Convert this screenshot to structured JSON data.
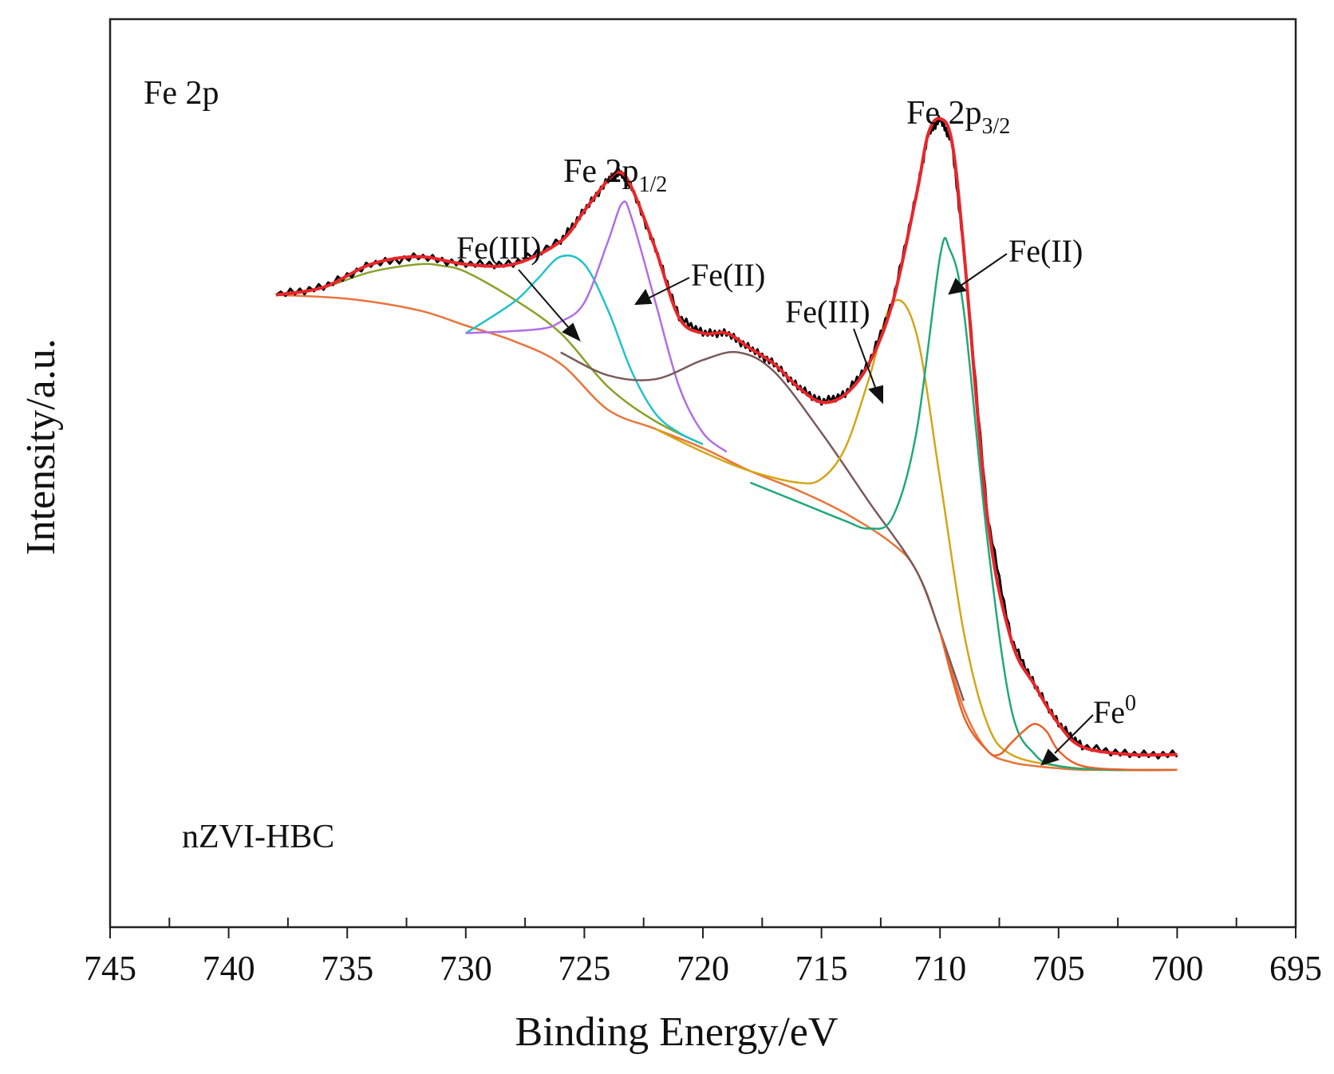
{
  "chart_data": {
    "type": "line",
    "xlabel": "Binding Energy/eV",
    "ylabel": "Intensity/a.u.",
    "x_reversed": true,
    "xlim": [
      745,
      695
    ],
    "ylim": [
      0,
      1
    ],
    "y_tick_labels": false,
    "grid": false,
    "x_ticks": [
      745,
      740,
      735,
      730,
      725,
      720,
      715,
      710,
      705,
      700,
      695
    ],
    "x_tick_labels": [
      "745",
      "740",
      "735",
      "730",
      "725",
      "720",
      "715",
      "710",
      "705",
      "700",
      "695"
    ],
    "element_label": "Fe 2p",
    "sample_label": "nZVI-HBC",
    "peak_group_labels": [
      {
        "main": "Fe 2p",
        "sub": "1/2"
      },
      {
        "main": "Fe 2p",
        "sub": "3/2"
      }
    ],
    "component_labels": [
      "Fe(III)",
      "Fe(II)",
      "Fe(III)",
      "Fe(II)",
      "Fe",
      "0"
    ],
    "series": [
      {
        "role": "raw data",
        "color": "#000000",
        "x": [
          738,
          736,
          734,
          732,
          730,
          728,
          726,
          725,
          724,
          723.5,
          723,
          722,
          721,
          720,
          719,
          718,
          717,
          716,
          715,
          714,
          713,
          712,
          711,
          710.5,
          710,
          709.5,
          709,
          708,
          707,
          706,
          705,
          704,
          702,
          700
        ],
        "y": [
          0.74,
          0.75,
          0.78,
          0.79,
          0.78,
          0.78,
          0.81,
          0.85,
          0.89,
          0.9,
          0.88,
          0.8,
          0.71,
          0.69,
          0.69,
          0.67,
          0.65,
          0.62,
          0.6,
          0.61,
          0.65,
          0.73,
          0.87,
          0.95,
          0.97,
          0.94,
          0.8,
          0.45,
          0.29,
          0.23,
          0.18,
          0.15,
          0.14,
          0.14
        ]
      },
      {
        "role": "fitted envelope",
        "color": "#e8262a",
        "x": [
          738,
          736,
          734,
          732,
          730,
          728,
          726,
          725,
          724,
          723.5,
          723,
          722,
          721,
          720,
          719,
          718,
          717,
          716,
          715,
          714,
          713,
          712,
          711,
          710.5,
          710,
          709.5,
          709,
          708,
          707,
          706,
          705,
          704,
          702,
          700
        ],
        "y": [
          0.74,
          0.75,
          0.78,
          0.79,
          0.78,
          0.78,
          0.81,
          0.85,
          0.89,
          0.9,
          0.88,
          0.8,
          0.71,
          0.69,
          0.69,
          0.67,
          0.65,
          0.62,
          0.6,
          0.61,
          0.65,
          0.73,
          0.87,
          0.95,
          0.97,
          0.94,
          0.8,
          0.45,
          0.29,
          0.23,
          0.18,
          0.15,
          0.14,
          0.14
        ]
      },
      {
        "role": "background",
        "color": "#e8743b",
        "x": [
          738,
          735,
          732,
          730,
          728,
          726,
          724,
          722,
          720,
          718,
          716,
          714,
          712,
          711,
          710,
          709,
          708,
          707,
          706,
          705,
          704,
          702,
          700
        ],
        "y": [
          0.74,
          0.735,
          0.72,
          0.7,
          0.68,
          0.65,
          0.59,
          0.565,
          0.54,
          0.51,
          0.485,
          0.455,
          0.415,
          0.38,
          0.3,
          0.2,
          0.145,
          0.13,
          0.125,
          0.122,
          0.12,
          0.12,
          0.12
        ]
      },
      {
        "role": "component",
        "color": "#8aa12a",
        "x": [
          738,
          736,
          734,
          732,
          731,
          730,
          728,
          726,
          724,
          722,
          720
        ],
        "y": [
          0.74,
          0.75,
          0.77,
          0.78,
          0.778,
          0.77,
          0.735,
          0.69,
          0.62,
          0.575,
          0.545
        ]
      },
      {
        "role": "component",
        "color": "#22c2c8",
        "x": [
          730,
          728,
          727,
          726,
          725,
          724,
          723,
          722,
          721,
          720
        ],
        "y": [
          0.69,
          0.73,
          0.76,
          0.79,
          0.78,
          0.72,
          0.64,
          0.585,
          0.56,
          0.545
        ]
      },
      {
        "role": "component",
        "color": "#b06ee8",
        "x": [
          730,
          727,
          726,
          725,
          724,
          723.4,
          723,
          722,
          721,
          720,
          719
        ],
        "y": [
          0.69,
          0.695,
          0.705,
          0.73,
          0.81,
          0.86,
          0.84,
          0.73,
          0.62,
          0.56,
          0.535
        ]
      },
      {
        "role": "component",
        "color": "#7a5a5a",
        "x": [
          726,
          724,
          722,
          720,
          718.5,
          717,
          715,
          713,
          711,
          710,
          709
        ],
        "y": [
          0.665,
          0.635,
          0.63,
          0.655,
          0.665,
          0.64,
          0.56,
          0.47,
          0.38,
          0.3,
          0.21
        ]
      },
      {
        "role": "component",
        "color": "#d4a518",
        "x": [
          722,
          720,
          718,
          716,
          715,
          714,
          713,
          712,
          711,
          710,
          709,
          708,
          707,
          705,
          703,
          700
        ],
        "y": [
          0.565,
          0.535,
          0.51,
          0.495,
          0.5,
          0.54,
          0.63,
          0.73,
          0.69,
          0.5,
          0.3,
          0.18,
          0.14,
          0.125,
          0.12,
          0.12
        ]
      },
      {
        "role": "component",
        "color": "#22a87a",
        "x": [
          718,
          716,
          714,
          713,
          712,
          711,
          710,
          709.6,
          709,
          708,
          707,
          706,
          705,
          703,
          700
        ],
        "y": [
          0.495,
          0.47,
          0.445,
          0.435,
          0.45,
          0.56,
          0.79,
          0.8,
          0.72,
          0.42,
          0.2,
          0.14,
          0.125,
          0.12,
          0.12
        ]
      },
      {
        "role": "component",
        "color": "#e8622a",
        "x": [
          710,
          709,
          708,
          707.5,
          707,
          706.5,
          706,
          705.5,
          705,
          704,
          702,
          700
        ],
        "y": [
          0.3,
          0.19,
          0.145,
          0.14,
          0.155,
          0.17,
          0.18,
          0.17,
          0.145,
          0.125,
          0.12,
          0.12
        ]
      }
    ]
  }
}
